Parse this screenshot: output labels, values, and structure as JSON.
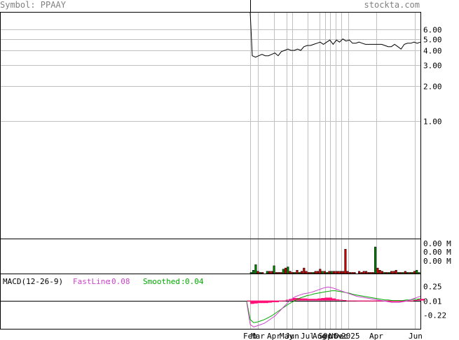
{
  "header": {
    "symbol_label": "Symbol: PPAAY",
    "site": "stockta.com"
  },
  "colors": {
    "header_text": "#808080",
    "grid": "#c0c0c0",
    "price_line": "#000000",
    "volume_up": "#008000",
    "volume_down": "#cc0000",
    "macd_fast": "#cc44cc",
    "macd_smoothed": "#00aa00",
    "macd_histogram": "#ff1177",
    "macd_label": "#000000"
  },
  "chart_data": [
    {
      "type": "line",
      "scale": "log",
      "y_tick_labels": [
        "6.00",
        "5.00",
        "4.00",
        "3.00",
        "2.00",
        "1.00"
      ],
      "y_ticks": [
        6,
        5,
        4,
        3,
        2,
        1
      ],
      "ylim": [
        0.1,
        8.5
      ],
      "x_labels": [
        "Feb",
        "Mar",
        "Apr",
        "May",
        "Jun",
        "Jul",
        "Aug",
        "Sep",
        "Oct",
        "Nov",
        "Dec",
        "2025",
        "Apr",
        "Jun"
      ],
      "x": [
        0,
        1,
        2,
        3,
        4,
        5,
        6,
        7,
        8,
        9,
        10,
        11,
        12,
        13,
        14,
        15,
        16,
        17,
        18,
        19,
        20,
        21,
        22,
        23,
        24,
        25,
        26,
        27,
        28,
        29,
        30,
        31,
        32,
        33,
        34,
        35,
        36,
        37,
        38,
        39,
        40,
        41,
        42,
        43,
        44,
        45,
        46,
        47,
        48,
        49,
        50,
        51,
        52,
        53,
        54,
        55,
        56,
        57,
        58,
        59,
        60,
        61,
        62,
        63,
        64,
        65,
        66,
        67,
        68,
        69,
        70,
        71,
        72,
        73,
        74,
        75,
        76,
        77,
        78,
        79,
        80,
        81,
        82,
        83,
        84,
        85,
        86,
        87,
        88,
        89,
        90,
        91,
        92,
        93,
        94,
        95,
        96,
        97,
        98,
        99,
        100,
        101,
        102,
        103,
        104,
        105,
        106,
        107,
        108,
        109,
        110,
        111,
        112,
        113,
        114,
        115,
        116,
        117,
        118,
        119,
        120,
        121,
        122,
        123,
        124,
        125,
        126,
        127,
        128,
        129,
        130,
        131,
        132,
        133,
        134,
        135,
        136,
        137,
        138,
        139,
        140,
        141,
        142,
        143,
        144,
        145,
        146,
        147,
        148,
        149,
        150,
        151,
        152,
        153,
        154,
        155,
        156,
        157,
        158,
        159,
        160,
        161,
        162,
        163,
        164,
        165,
        166,
        167,
        168,
        169,
        170,
        171,
        172,
        173,
        174,
        175,
        176,
        177,
        178,
        179,
        180,
        181,
        182,
        183,
        184,
        185,
        186,
        187,
        188,
        189,
        190,
        191,
        192,
        193,
        194,
        195,
        196,
        197,
        198,
        199,
        200,
        201,
        202,
        203,
        204,
        205,
        206,
        207,
        208,
        209,
        210,
        211,
        212,
        213,
        214,
        215,
        216,
        217,
        218,
        219,
        220,
        221,
        222,
        223,
        224,
        225,
        226,
        227,
        228,
        229,
        230,
        231,
        232,
        233,
        234,
        235,
        236,
        237,
        238,
        239,
        240,
        241,
        242,
        243,
        244,
        245,
        246,
        247,
        248,
        249,
        250,
        251,
        252,
        253,
        254,
        255,
        256,
        257,
        258,
        259,
        260,
        261,
        262,
        263,
        264,
        265,
        266,
        267,
        268,
        269,
        270,
        271,
        272,
        273,
        274,
        275,
        276,
        277,
        278,
        279,
        280,
        281,
        282,
        283,
        284,
        285,
        286,
        287,
        288,
        289,
        290,
        291,
        292,
        293,
        294,
        295,
        296,
        297,
        298,
        299,
        300,
        301,
        302,
        303,
        304,
        305,
        306,
        307,
        308,
        309,
        310,
        311,
        312,
        313,
        314,
        315,
        316,
        317,
        318,
        319,
        320,
        321,
        322,
        323,
        324,
        325,
        326,
        327,
        328,
        329,
        330,
        331,
        332,
        333,
        334,
        335,
        336,
        337,
        338,
        339,
        340,
        341,
        342,
        343,
        344,
        345,
        346,
        347,
        348,
        349,
        350,
        351,
        352,
        353,
        354,
        355,
        356,
        357,
        358,
        359,
        360,
        361,
        362,
        363,
        364,
        365,
        366,
        367,
        368,
        369,
        370,
        371,
        372,
        373,
        374,
        375,
        376,
        377,
        378,
        379,
        380,
        381,
        382,
        383,
        384,
        385,
        386,
        387,
        388,
        389,
        390,
        391,
        392,
        393,
        394,
        395,
        396,
        397,
        398,
        399,
        400,
        401,
        402,
        403,
        404,
        405,
        406,
        407,
        408,
        409,
        410,
        411,
        412,
        413,
        414,
        415,
        416,
        417,
        418,
        419,
        420,
        421,
        422,
        423,
        424,
        425,
        426,
        427,
        428,
        429,
        430,
        431,
        432,
        433,
        434,
        435,
        436,
        437,
        438,
        439,
        440,
        441,
        442,
        443,
        444,
        445,
        446,
        447,
        448,
        449,
        450,
        451,
        452,
        453,
        454,
        455,
        456,
        457,
        458,
        459,
        460,
        461,
        462,
        463,
        464,
        465,
        466,
        467,
        468,
        469,
        470,
        471,
        472,
        473,
        474,
        475,
        476,
        477,
        478,
        479,
        480,
        481,
        482,
        483,
        484,
        485,
        486,
        487,
        488,
        489,
        490,
        491,
        492,
        493,
        494,
        495,
        496,
        497,
        498,
        499
      ],
      "price": {
        "y": [
          8.5,
          3.6,
          3.5,
          3.6,
          3.7,
          3.6,
          3.6,
          3.7,
          3.8,
          3.6,
          3.9,
          4.0,
          4.1,
          4.0,
          4.0,
          4.1,
          4.0,
          4.3,
          4.4,
          4.4,
          4.5,
          4.6,
          4.7,
          4.5,
          4.7,
          4.9,
          4.5,
          4.9,
          4.7,
          5.0,
          4.8,
          4.9,
          4.6,
          4.6,
          4.7,
          4.6,
          4.5,
          4.5,
          4.5,
          4.5,
          4.5,
          4.5,
          4.4,
          4.3,
          4.3,
          4.5,
          4.3,
          4.1,
          4.5,
          4.6,
          4.6,
          4.7,
          4.6,
          4.7
        ]
      }
    },
    {
      "type": "bar",
      "y_tick_labels": [
        "0.00 M",
        "0.00 M",
        "0.00 M"
      ],
      "values": [
        1,
        3,
        8,
        2,
        1,
        1,
        0,
        2,
        2,
        2,
        7,
        1,
        1,
        1,
        4,
        5,
        6,
        2,
        1,
        1,
        3,
        1,
        2,
        5,
        2,
        1,
        1,
        1,
        2,
        2,
        4,
        2,
        2,
        1,
        2,
        2,
        2,
        2,
        2,
        2,
        2,
        22,
        2,
        1,
        1,
        1,
        0,
        2,
        1,
        2,
        2,
        1,
        1,
        1,
        24,
        5,
        3,
        2,
        1,
        1,
        1,
        2,
        2,
        3,
        1,
        1,
        1,
        2,
        1,
        1,
        1,
        2,
        3,
        1
      ],
      "colors": [
        "up",
        "up",
        "up",
        "down",
        "up",
        "down",
        "down",
        "up",
        "down",
        "down",
        "up",
        "down",
        "down",
        "down",
        "up",
        "down",
        "up",
        "down",
        "down",
        "up",
        "down",
        "up",
        "down",
        "down",
        "down",
        "down",
        "down",
        "up",
        "down",
        "down",
        "down",
        "up",
        "down",
        "up",
        "down",
        "up",
        "down",
        "down",
        "down",
        "down",
        "down",
        "down",
        "down",
        "down",
        "down",
        "down",
        "down",
        "down",
        "down",
        "down",
        "down",
        "down",
        "down",
        "down",
        "up",
        "down",
        "down",
        "down",
        "up",
        "down",
        "up",
        "down",
        "down",
        "down",
        "up",
        "down",
        "up",
        "down",
        "up",
        "down",
        "up",
        "down",
        "up",
        "up"
      ]
    },
    {
      "type": "line",
      "title": "MACD(12-26-9)",
      "y_tick_labels": [
        "0.25",
        "0.01",
        "-0.22"
      ],
      "y_ticks": [
        0.25,
        0.01,
        -0.22
      ],
      "ylim": [
        -0.45,
        0.45
      ],
      "series": [
        {
          "name": "FastLine",
          "last_value": "0.08",
          "values": [
            -0.02,
            -0.38,
            -0.42,
            -0.4,
            -0.38,
            -0.36,
            -0.32,
            -0.28,
            -0.24,
            -0.18,
            -0.12,
            -0.06,
            0.0,
            0.05,
            0.08,
            0.1,
            0.12,
            0.13,
            0.14,
            0.16,
            0.18,
            0.2,
            0.22,
            0.23,
            0.22,
            0.2,
            0.18,
            0.16,
            0.14,
            0.12,
            0.1,
            0.08,
            0.07,
            0.06,
            0.05,
            0.04,
            0.03,
            0.02,
            0.01,
            0.0,
            -0.01,
            -0.02,
            -0.02,
            -0.02,
            -0.01,
            0.0,
            0.02,
            0.04,
            0.06,
            0.08
          ]
        },
        {
          "name": "Smoothed",
          "last_value": "0.04",
          "values": [
            0.0,
            -0.3,
            -0.35,
            -0.34,
            -0.32,
            -0.3,
            -0.27,
            -0.24,
            -0.2,
            -0.16,
            -0.12,
            -0.08,
            -0.04,
            -0.01,
            0.02,
            0.05,
            0.07,
            0.09,
            0.1,
            0.12,
            0.13,
            0.14,
            0.15,
            0.16,
            0.17,
            0.17,
            0.16,
            0.15,
            0.14,
            0.13,
            0.11,
            0.1,
            0.09,
            0.08,
            0.07,
            0.06,
            0.05,
            0.04,
            0.03,
            0.02,
            0.02,
            0.01,
            0.01,
            0.01,
            0.01,
            0.02,
            0.02,
            0.03,
            0.03,
            0.04
          ]
        }
      ]
    }
  ]
}
